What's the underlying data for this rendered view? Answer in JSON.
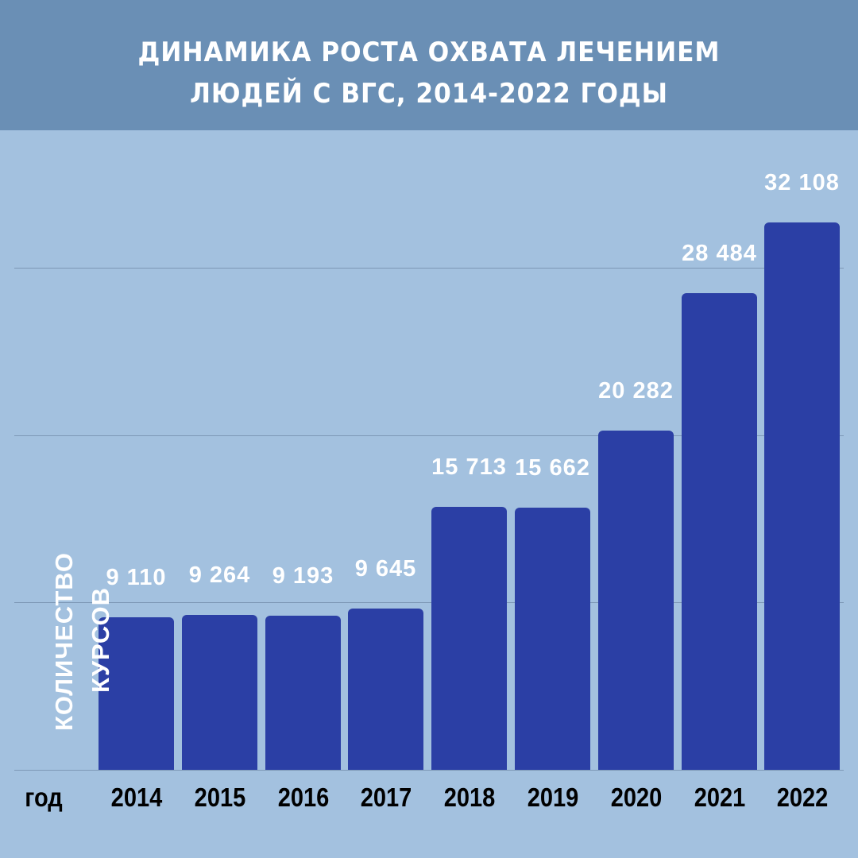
{
  "header": {
    "title_line1": "ДИНАМИКА РОСТА ОХВАТА ЛЕЧЕНИЕМ",
    "title_line2": "ЛЮДЕЙ С ВГС, 2014-2022 ГОДЫ"
  },
  "axes": {
    "ylabel_line1": "КОЛИЧЕСТВО",
    "ylabel_line2": "КУРСОВ",
    "xlabel": "год"
  },
  "colors": {
    "header_bg": "#6a8fb5",
    "background": "#a3c1df",
    "bar": "#2b3fa5",
    "value_text": "#ffffff",
    "year_text": "#000000"
  },
  "chart_data": {
    "type": "bar",
    "title": "ДИНАМИКА РОСТА ОХВАТА ЛЕЧЕНИЕМ ЛЮДЕЙ С ВГС, 2014-2022 ГОДЫ",
    "xlabel": "год",
    "ylabel": "КОЛИЧЕСТВО КУРСОВ",
    "categories": [
      "2014",
      "2015",
      "2016",
      "2017",
      "2018",
      "2019",
      "2020",
      "2021",
      "2022"
    ],
    "values": [
      9110,
      9264,
      9193,
      9645,
      15713,
      15662,
      20282,
      28484,
      32108
    ],
    "value_labels": [
      "9 110",
      "9 264",
      "9 193",
      "9 645",
      "15 713",
      "15 662",
      "20 282",
      "28 484",
      "32 108"
    ],
    "ylim": [
      0,
      33000
    ],
    "gridlines": [
      0,
      10000,
      20000,
      30000
    ],
    "grid": true,
    "legend": "none"
  }
}
